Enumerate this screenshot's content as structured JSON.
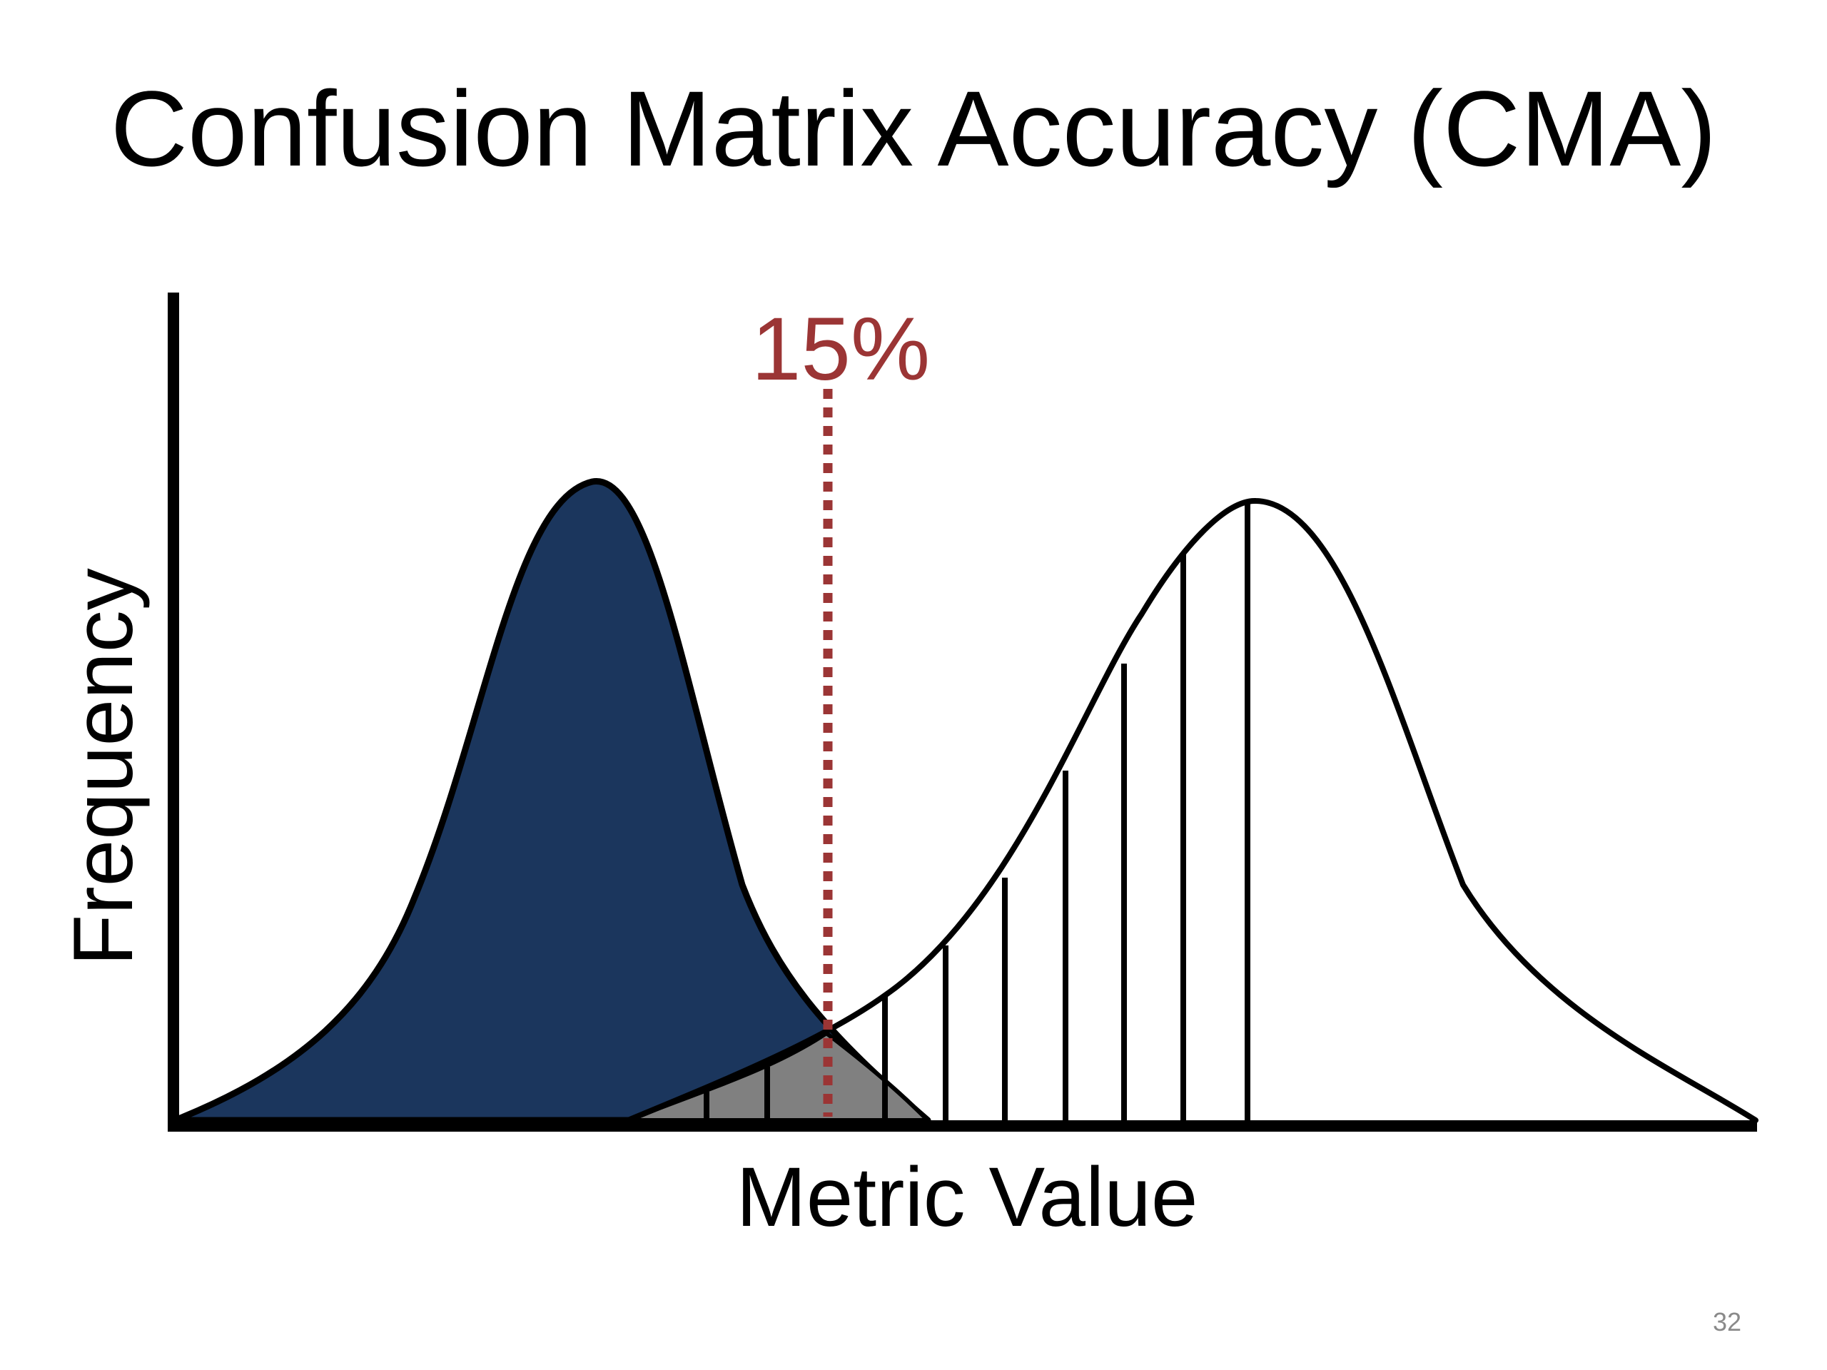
{
  "slide": {
    "title": "Confusion Matrix Accuracy (CMA)",
    "page_number": "32"
  },
  "diagram": {
    "y_axis_label": "Frequency",
    "x_axis_label": "Metric Value",
    "threshold_label": "15%",
    "colors": {
      "left_distribution_fill": "#1b365d",
      "overlap_fill": "#808080",
      "threshold_line": "#9b3535",
      "threshold_text": "#9b3535",
      "outline": "#000000"
    }
  }
}
